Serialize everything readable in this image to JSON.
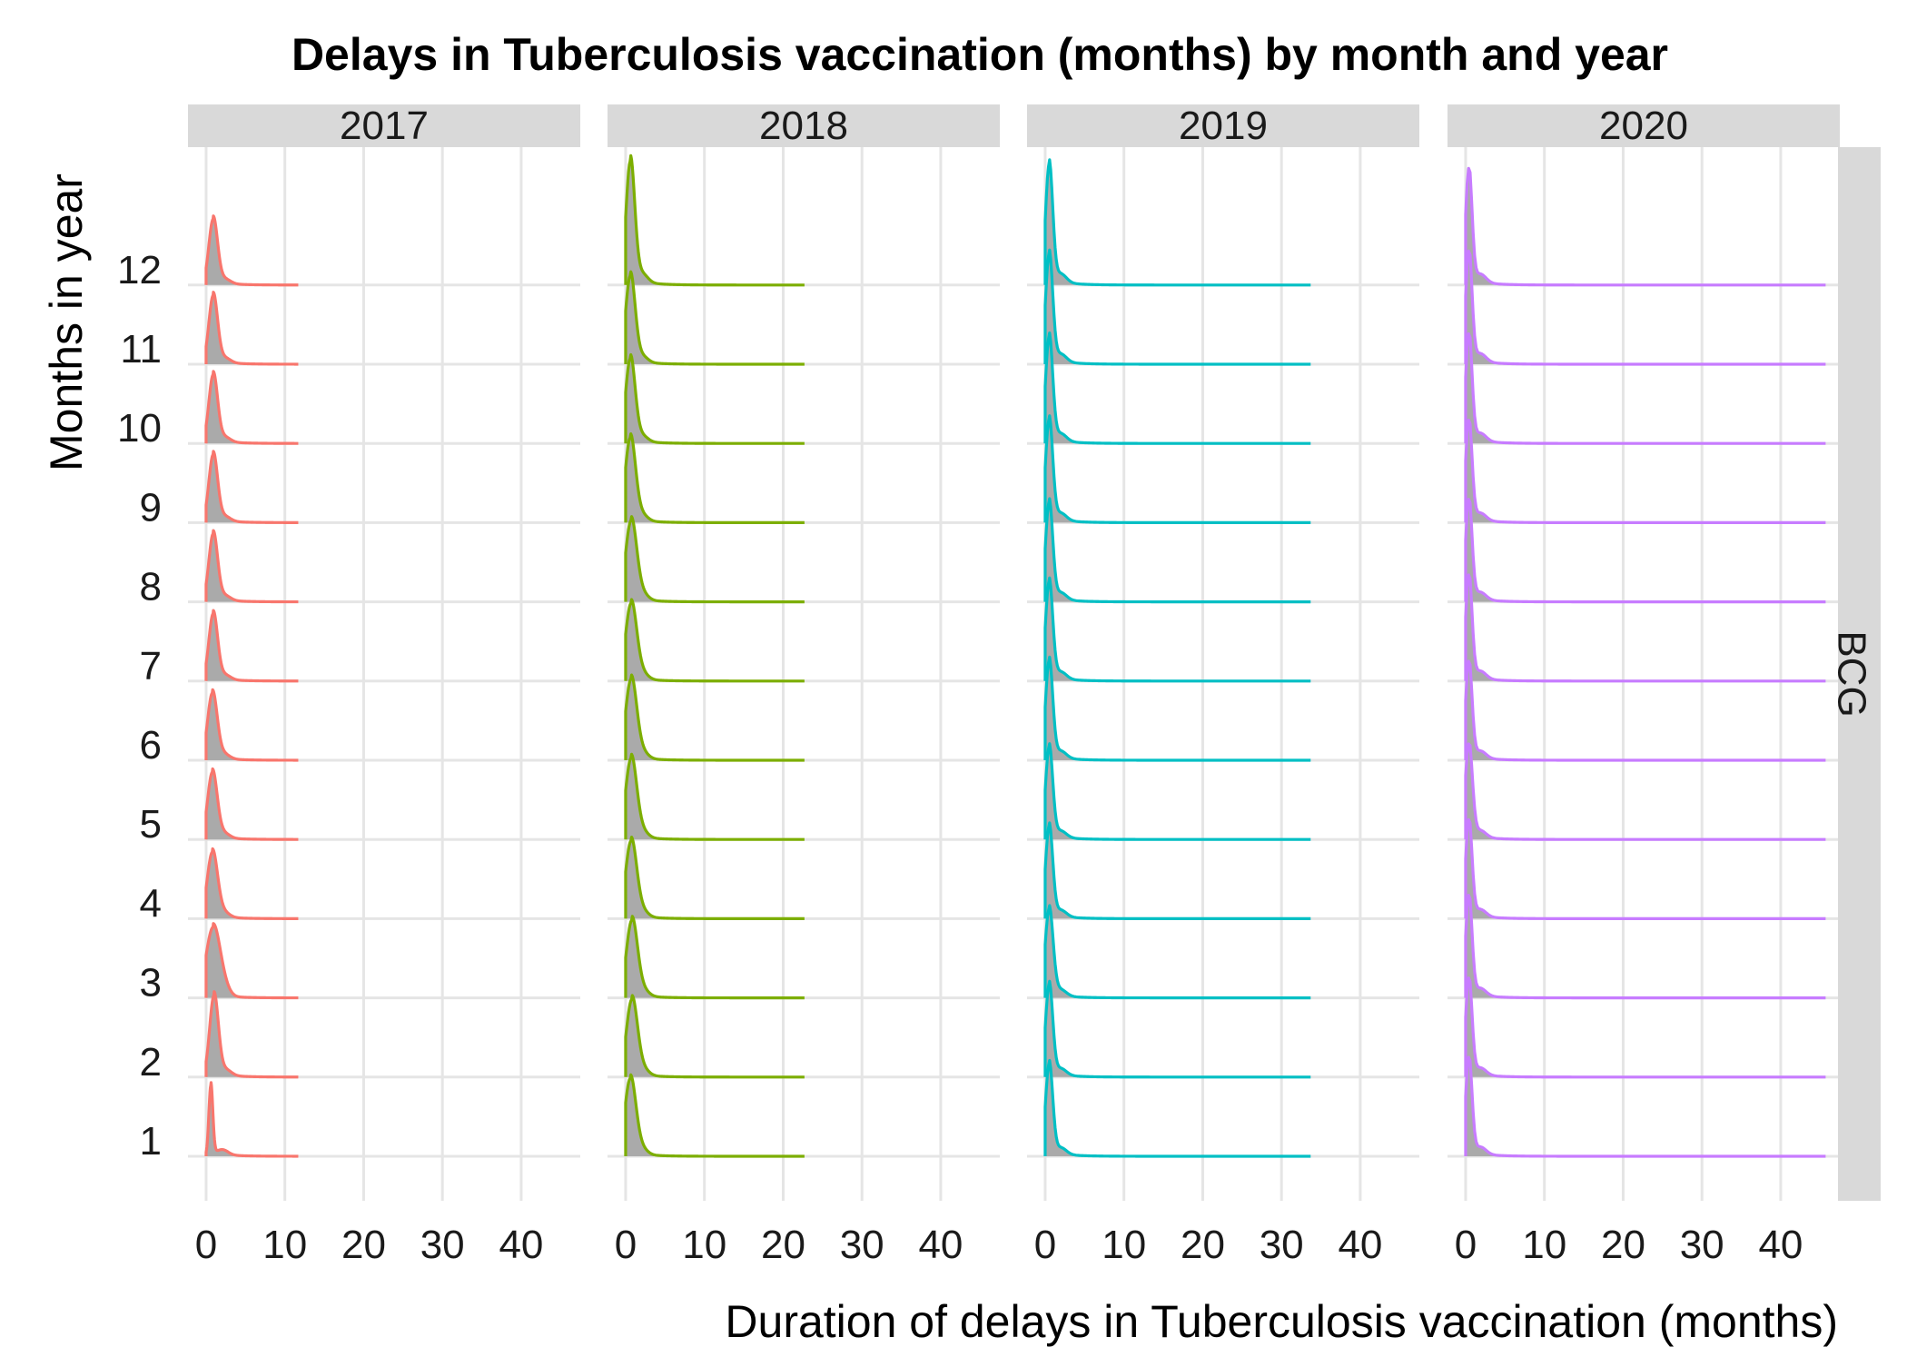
{
  "chart_data": {
    "type": "area",
    "subtype": "ridgeline-density-faceted",
    "title": "Delays in Tuberculosis vaccination (months) by month and year",
    "xlabel": "Duration of delays in Tuberculosis vaccination (months)",
    "ylabel": "Months in year",
    "row_facet": "BCG",
    "facets": [
      "2017",
      "2018",
      "2019",
      "2020"
    ],
    "facet_colors": [
      "#F8766D",
      "#7CAE00",
      "#00BFC4",
      "#C77CFF"
    ],
    "fill_color": "#aaaaaa",
    "grid": true,
    "xlim": [
      -2.3,
      47.5
    ],
    "x_ticks": [
      0,
      10,
      20,
      30,
      40
    ],
    "y_categories": [
      "1",
      "2",
      "3",
      "4",
      "5",
      "6",
      "7",
      "8",
      "9",
      "10",
      "11",
      "12"
    ],
    "x_max_by_year": [
      11.7,
      22.7,
      33.7,
      45.7
    ],
    "series": [
      {
        "name": "2017",
        "peak_x": [
          0.6,
          1.0,
          0.9,
          0.8,
          0.8,
          0.8,
          0.9,
          0.9,
          0.9,
          0.9,
          0.9,
          0.9
        ],
        "peak_height": [
          1.0,
          1.15,
          1.0,
          0.94,
          0.95,
          0.95,
          0.95,
          0.96,
          0.96,
          0.97,
          0.97,
          0.93
        ],
        "width": [
          0.25,
          0.55,
          0.9,
          0.65,
          0.6,
          0.6,
          0.55,
          0.55,
          0.55,
          0.55,
          0.55,
          0.55
        ]
      },
      {
        "name": "2018",
        "peak_x": [
          0.6,
          0.8,
          0.8,
          0.7,
          0.7,
          0.7,
          0.7,
          0.7,
          0.6,
          0.6,
          0.6,
          0.6
        ],
        "peak_height": [
          1.1,
          1.1,
          1.1,
          1.1,
          1.15,
          1.15,
          1.1,
          1.15,
          1.2,
          1.2,
          1.25,
          1.75
        ],
        "width": [
          0.7,
          0.7,
          0.7,
          0.7,
          0.7,
          0.7,
          0.7,
          0.7,
          0.65,
          0.6,
          0.6,
          0.55
        ]
      },
      {
        "name": "2019",
        "peak_x": [
          0.5,
          0.5,
          0.5,
          0.5,
          0.5,
          0.5,
          0.5,
          0.5,
          0.5,
          0.5,
          0.5,
          0.5
        ],
        "peak_height": [
          1.3,
          1.3,
          1.25,
          1.3,
          1.3,
          1.4,
          1.4,
          1.4,
          1.45,
          1.5,
          1.55,
          1.7
        ],
        "width": [
          0.45,
          0.45,
          0.5,
          0.45,
          0.45,
          0.45,
          0.45,
          0.45,
          0.45,
          0.45,
          0.45,
          0.45
        ]
      },
      {
        "name": "2020",
        "peak_x": [
          0.4,
          0.4,
          0.4,
          0.4,
          0.4,
          0.4,
          0.4,
          0.4,
          0.4,
          0.4,
          0.4,
          0.4
        ],
        "peak_height": [
          1.4,
          1.4,
          1.45,
          1.4,
          1.35,
          1.4,
          1.5,
          1.45,
          1.45,
          1.55,
          1.6,
          1.65
        ],
        "width": [
          0.4,
          0.4,
          0.4,
          0.4,
          0.45,
          0.4,
          0.4,
          0.4,
          0.4,
          0.4,
          0.4,
          0.4
        ]
      }
    ]
  }
}
